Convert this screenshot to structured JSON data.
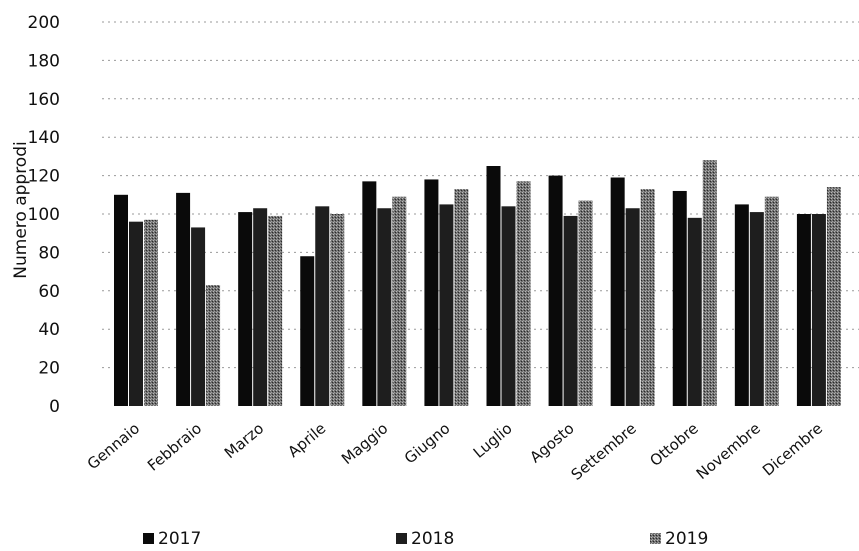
{
  "chart_data": {
    "type": "bar",
    "categories": [
      "Gennaio",
      "Febbraio",
      "Marzo",
      "Aprile",
      "Maggio",
      "Giugno",
      "Luglio",
      "Agosto",
      "Settembre",
      "Ottobre",
      "Novembre",
      "Dicembre"
    ],
    "series": [
      {
        "name": "2017",
        "color": "#0a0a0a",
        "values": [
          110,
          111,
          101,
          78,
          117,
          118,
          125,
          120,
          119,
          112,
          105,
          100
        ]
      },
      {
        "name": "2018",
        "color": "#1e1e1e",
        "values": [
          96,
          93,
          103,
          104,
          103,
          105,
          104,
          99,
          103,
          98,
          101,
          100
        ]
      },
      {
        "name": "2019",
        "color": "#6f6f6f",
        "values": [
          97,
          63,
          99,
          100,
          109,
          113,
          117,
          107,
          113,
          128,
          109,
          114
        ]
      }
    ],
    "ylabel": "Numero approdi",
    "xlabel": "",
    "ylim": [
      0,
      200
    ],
    "yticks": [
      0,
      20,
      40,
      60,
      80,
      100,
      120,
      140,
      160,
      180,
      200
    ],
    "grid": true,
    "legend_position": "bottom"
  }
}
